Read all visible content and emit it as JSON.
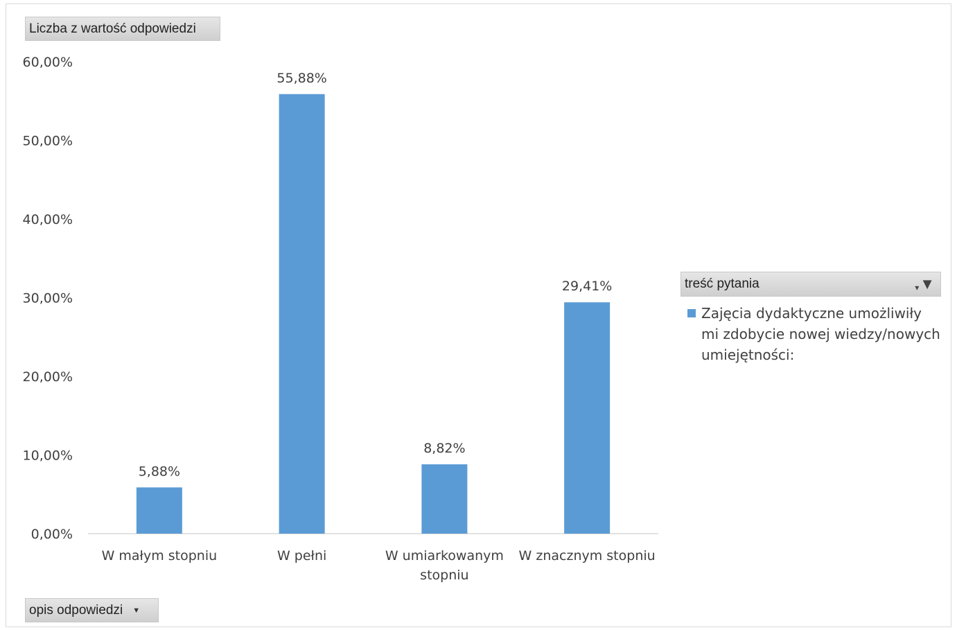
{
  "fields": {
    "value_field": "Liczba z wartość odpowiedzi",
    "axis_field": "opis odpowiedzi",
    "legend_field": "treść pytania"
  },
  "icons": {
    "axis_dropdown": "chevron-down-icon",
    "legend_filter": "filter-icon"
  },
  "chart_data": {
    "type": "bar",
    "categories": [
      "W małym stopniu",
      "W pełni",
      "W umiarkowanym stopniu",
      "W znacznym stopniu"
    ],
    "series": [
      {
        "name": "Zajęcia dydaktyczne umożliwiły mi zdobycie nowej wiedzy/nowych umiejętności:",
        "values": [
          5.88,
          55.88,
          8.82,
          29.41
        ],
        "labels": [
          "5,88%",
          "55,88%",
          "8,82%",
          "29,41%"
        ]
      }
    ],
    "yticks": [
      "0,00%",
      "10,00%",
      "20,00%",
      "30,00%",
      "40,00%",
      "50,00%",
      "60,00%"
    ],
    "ylim": [
      0,
      60
    ],
    "grid": false,
    "legend_position": "right",
    "color": "#5b9bd5"
  }
}
